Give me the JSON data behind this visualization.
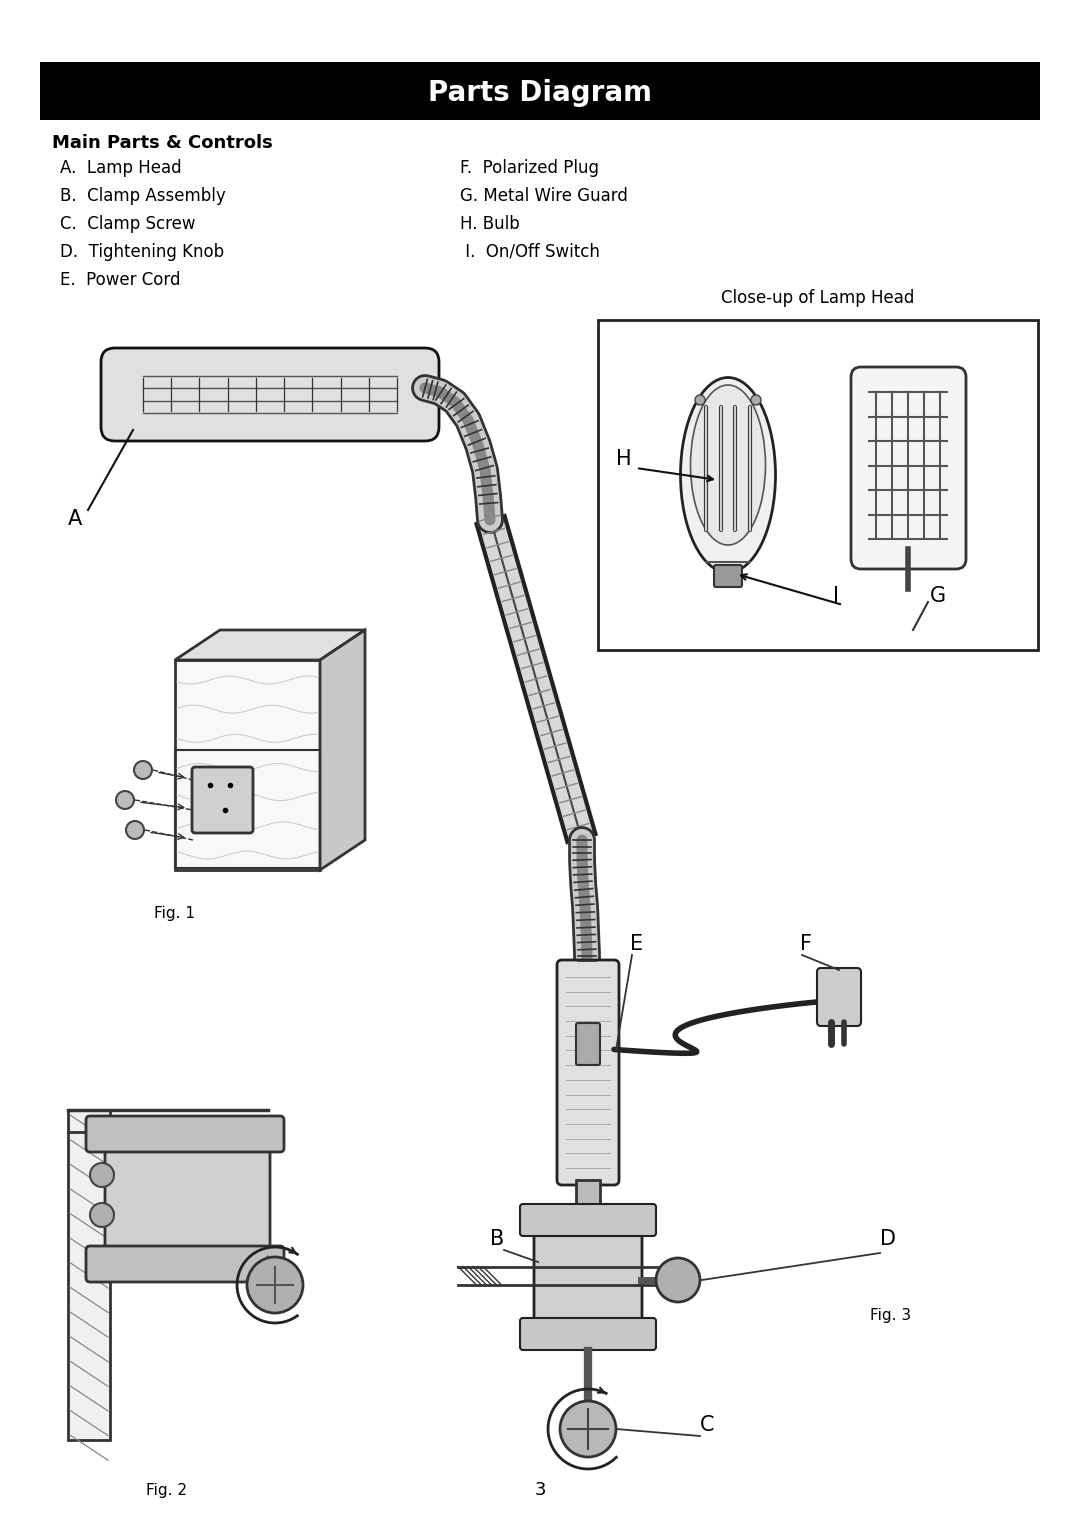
{
  "title": "Parts Diagram",
  "title_bg": "#000000",
  "title_color": "#ffffff",
  "title_fontsize": 20,
  "subtitle": "Main Parts & Controls",
  "subtitle_fontsize": 13,
  "bg_color": "#ffffff",
  "parts_left": [
    "A.  Lamp Head",
    "B.  Clamp Assembly",
    "C.  Clamp Screw",
    "D.  Tightening Knob",
    "E.  Power Cord"
  ],
  "parts_right": [
    "F.  Polarized Plug",
    "G. Metal Wire Guard",
    "H. Bulb",
    " I.  On/Off Switch"
  ],
  "closeup_label": "Close-up of Lamp Head",
  "fig1_label": "Fig. 1",
  "fig2_label": "Fig. 2",
  "fig3_label": "Fig. 3",
  "page_number": "3",
  "parts_fontsize": 12,
  "label_fontsize": 15
}
